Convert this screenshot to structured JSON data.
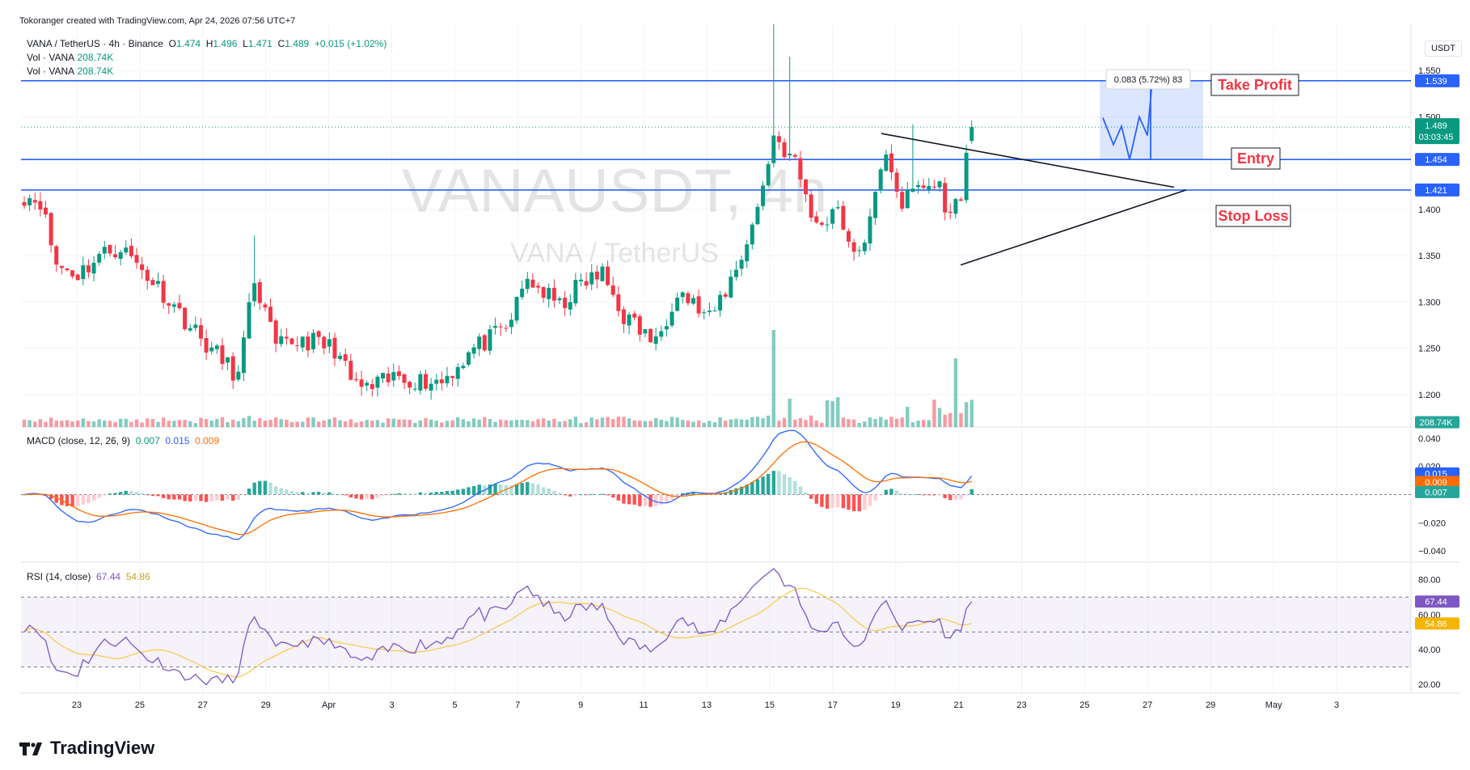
{
  "attribution": "Tokoranger created with TradingView.com, Apr 24, 2026 07:56 UTC+7",
  "legend": {
    "symbol": "VANA / TetherUS · 4h · Binance",
    "o_label": "O",
    "o": "1.474",
    "h_label": "H",
    "h": "1.496",
    "l_label": "L",
    "l": "1.471",
    "c_label": "C",
    "c": "1.489",
    "change": "+0.015 (+1.02%)",
    "vol1_label": "Vol · VANA",
    "vol1": "208.74K",
    "vol2_label": "Vol · VANA",
    "vol2": "208.74K"
  },
  "watermark": {
    "symbol": "VANAUSDT, 4h",
    "name": "VANA / TetherUS"
  },
  "currency": "USDT",
  "macd": {
    "label": "MACD (close, 12, 26, 9)",
    "v1": "0.007",
    "v2": "0.015",
    "v3": "0.009"
  },
  "rsi": {
    "label": "RSI (14, close)",
    "v1": "67.44",
    "v2": "54.86"
  },
  "brand": "TradingView",
  "colors": {
    "up": "#089981",
    "down": "#f23645",
    "line": "#2962ff",
    "signal": "#ff6d00",
    "rsi": "#7e57c2",
    "rsi_ma": "#f7c948"
  },
  "chart_data": {
    "type": "candlestick",
    "x_ticks": [
      "23",
      "25",
      "27",
      "29",
      "Apr",
      "3",
      "5",
      "7",
      "9",
      "11",
      "13",
      "15",
      "17",
      "19",
      "21",
      "23",
      "25",
      "27",
      "29",
      "May",
      "3"
    ],
    "price_ticks": [
      "1.550",
      "1.500",
      "1.400",
      "1.350",
      "1.300",
      "1.250",
      "1.200"
    ],
    "price_range": [
      1.165,
      1.6
    ],
    "anchors": [
      {
        "x": 0,
        "p": 1.415
      },
      {
        "x": 3,
        "p": 1.41
      },
      {
        "x": 6,
        "p": 1.34
      },
      {
        "x": 10,
        "p": 1.33
      },
      {
        "x": 14,
        "p": 1.35
      },
      {
        "x": 18,
        "p": 1.36
      },
      {
        "x": 22,
        "p": 1.335
      },
      {
        "x": 26,
        "p": 1.31
      },
      {
        "x": 33,
        "p": 1.26
      },
      {
        "x": 40,
        "p": 1.22
      },
      {
        "x": 43,
        "p": 1.325
      },
      {
        "x": 47,
        "p": 1.25
      },
      {
        "x": 52,
        "p": 1.26
      },
      {
        "x": 58,
        "p": 1.25
      },
      {
        "x": 61,
        "p": 1.215
      },
      {
        "x": 64,
        "p": 1.205
      },
      {
        "x": 70,
        "p": 1.22
      },
      {
        "x": 74,
        "p": 1.215
      },
      {
        "x": 78,
        "p": 1.215
      },
      {
        "x": 84,
        "p": 1.25
      },
      {
        "x": 90,
        "p": 1.27
      },
      {
        "x": 94,
        "p": 1.325
      },
      {
        "x": 100,
        "p": 1.295
      },
      {
        "x": 104,
        "p": 1.32
      },
      {
        "x": 108,
        "p": 1.33
      },
      {
        "x": 112,
        "p": 1.285
      },
      {
        "x": 118,
        "p": 1.255
      },
      {
        "x": 122,
        "p": 1.315
      },
      {
        "x": 128,
        "p": 1.28
      },
      {
        "x": 133,
        "p": 1.335
      },
      {
        "x": 137,
        "p": 1.4
      },
      {
        "x": 140,
        "p": 1.48
      },
      {
        "x": 144,
        "p": 1.45
      },
      {
        "x": 148,
        "p": 1.38
      },
      {
        "x": 152,
        "p": 1.405
      },
      {
        "x": 155,
        "p": 1.345
      },
      {
        "x": 158,
        "p": 1.385
      },
      {
        "x": 161,
        "p": 1.465
      },
      {
        "x": 164,
        "p": 1.405
      },
      {
        "x": 167,
        "p": 1.425
      },
      {
        "x": 171,
        "p": 1.425
      },
      {
        "x": 173,
        "p": 1.39
      },
      {
        "x": 175,
        "p": 1.42
      },
      {
        "x": 177,
        "p": 1.49
      }
    ],
    "levels": {
      "take_profit": 1.539,
      "entry": 1.454,
      "stop_loss": 1.421,
      "last": 1.489
    },
    "level_labels": {
      "take_profit": "1.539",
      "entry": "1.454",
      "stop_loss": "1.421",
      "last": "1.489",
      "countdown": "03:03:45",
      "volume": "208.74K"
    },
    "annotations": {
      "take_profit": "Take Profit",
      "entry": "Entry",
      "stop_loss": "Stop Loss",
      "measure": "0.083 (5.72%) 83"
    },
    "macd_ticks": [
      "0.040",
      "0.020",
      "0.000",
      "−0.020",
      "−0.040"
    ],
    "macd_range": [
      -0.048,
      0.048
    ],
    "rsi_ticks": [
      "80.00",
      "60.00",
      "40.00",
      "20.00"
    ],
    "rsi_range": [
      15,
      90
    ],
    "rsi_band": [
      30,
      70
    ]
  }
}
